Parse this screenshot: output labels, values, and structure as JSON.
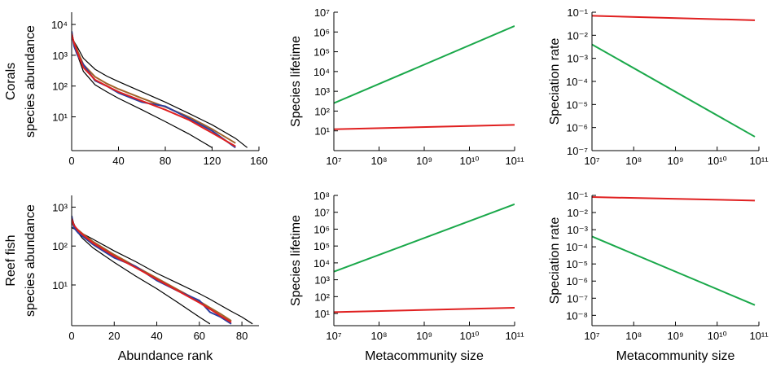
{
  "chart_data": [
    {
      "type": "line",
      "xscale": "linear",
      "yscale": "log",
      "ylabel": [
        "Corals",
        "species abundance"
      ],
      "x": [
        0,
        2,
        5,
        10,
        20,
        30,
        40,
        60,
        80,
        100,
        120,
        140,
        150
      ],
      "xlim": [
        0,
        160
      ],
      "xticks": [
        0,
        40,
        80,
        120,
        160
      ],
      "ylim": [
        0.8,
        25000
      ],
      "yticks": [
        {
          "value": 10,
          "label": "10¹"
        },
        {
          "value": 100,
          "label": "10²"
        },
        {
          "value": 1000,
          "label": "10³"
        },
        {
          "value": 10000,
          "label": "10⁴"
        }
      ],
      "series": [
        {
          "color": "#000000",
          "values": [
            3500,
            2800,
            1800,
            800,
            350,
            210,
            140,
            65,
            30,
            13,
            5.5,
            2,
            1
          ]
        },
        {
          "color": "#000000",
          "values": [
            6000,
            2500,
            1000,
            300,
            110,
            65,
            40,
            17,
            7,
            2.8,
            1,
            null,
            null
          ]
        },
        {
          "color": "#a0642a",
          "values": [
            4500,
            2600,
            1400,
            500,
            200,
            120,
            80,
            40,
            21,
            10,
            4,
            1.4,
            null
          ]
        },
        {
          "color": "#2b3fa0",
          "values": [
            6000,
            2000,
            1000,
            500,
            150,
            100,
            60,
            30,
            22,
            9,
            3.5,
            1,
            null
          ]
        },
        {
          "color": "#e02020",
          "values": [
            5000,
            2500,
            1200,
            400,
            160,
            100,
            65,
            33,
            17,
            8,
            3,
            1.1,
            null
          ]
        }
      ]
    },
    {
      "type": "line",
      "xscale": "log",
      "yscale": "log",
      "ylabel": [
        "Species lifetime"
      ],
      "x": [
        10000000.0,
        100000000000.0
      ],
      "xlim": [
        10000000.0,
        100000000000.0
      ],
      "xticks": [
        {
          "value": 10000000.0,
          "label": "10⁷"
        },
        {
          "value": 100000000.0,
          "label": "10⁸"
        },
        {
          "value": 1000000000.0,
          "label": "10⁹"
        },
        {
          "value": 10000000000.0,
          "label": "10¹⁰"
        },
        {
          "value": 100000000000.0,
          "label": "10¹¹"
        }
      ],
      "ylim": [
        1,
        10000000.0
      ],
      "yticks": [
        {
          "value": 10,
          "label": "10¹"
        },
        {
          "value": 100,
          "label": "10²"
        },
        {
          "value": 1000,
          "label": "10³"
        },
        {
          "value": 10000.0,
          "label": "10⁴"
        },
        {
          "value": 100000.0,
          "label": "10⁵"
        },
        {
          "value": 1000000.0,
          "label": "10⁶"
        },
        {
          "value": 10000000.0,
          "label": "10⁷"
        }
      ],
      "series": [
        {
          "color": "#1aa84a",
          "values": [
            250,
            2000000
          ]
        },
        {
          "color": "#e02020",
          "values": [
            12,
            20
          ]
        }
      ]
    },
    {
      "type": "line",
      "xscale": "log",
      "yscale": "log",
      "ylabel": [
        "Speciation rate"
      ],
      "x": [
        10000000.0,
        80000000000.0
      ],
      "xlim": [
        10000000.0,
        100000000000.0
      ],
      "xticks": [
        {
          "value": 10000000.0,
          "label": "10⁷"
        },
        {
          "value": 100000000.0,
          "label": "10⁸"
        },
        {
          "value": 1000000000.0,
          "label": "10⁹"
        },
        {
          "value": 10000000000.0,
          "label": "10¹⁰"
        },
        {
          "value": 100000000000.0,
          "label": "10¹¹"
        }
      ],
      "ylim": [
        1e-07,
        0.1
      ],
      "yticks": [
        {
          "value": 1e-07,
          "label": "10⁻⁷"
        },
        {
          "value": 1e-06,
          "label": "10⁻⁶"
        },
        {
          "value": 1e-05,
          "label": "10⁻⁵"
        },
        {
          "value": 0.0001,
          "label": "10⁻⁴"
        },
        {
          "value": 0.001,
          "label": "10⁻³"
        },
        {
          "value": 0.01,
          "label": "10⁻²"
        },
        {
          "value": 0.1,
          "label": "10⁻¹"
        }
      ],
      "series": [
        {
          "color": "#1aa84a",
          "values": [
            0.004,
            4e-07
          ]
        },
        {
          "color": "#e02020",
          "values": [
            0.07,
            0.045
          ]
        }
      ]
    },
    {
      "type": "line",
      "xscale": "linear",
      "yscale": "log",
      "ylabel": [
        "Reef fish",
        "species abundance"
      ],
      "xlabel": "Abundance rank",
      "x": [
        0,
        1,
        3,
        5,
        10,
        20,
        30,
        40,
        50,
        60,
        65,
        70,
        75,
        80,
        85
      ],
      "xlim": [
        0,
        88
      ],
      "xticks": [
        0,
        20,
        40,
        60,
        80
      ],
      "ylim": [
        0.9,
        2000
      ],
      "yticks": [
        {
          "value": 10,
          "label": "10¹"
        },
        {
          "value": 100,
          "label": "10²"
        },
        {
          "value": 1000,
          "label": "10³"
        }
      ],
      "series": [
        {
          "color": "#000000",
          "values": [
            300,
            280,
            240,
            210,
            150,
            75,
            40,
            20,
            11,
            6,
            4.3,
            3,
            2.1,
            1.5,
            1
          ]
        },
        {
          "color": "#000000",
          "values": [
            600,
            380,
            220,
            160,
            90,
            38,
            17,
            8,
            3.5,
            1.5,
            1,
            null,
            null,
            null,
            null
          ]
        },
        {
          "color": "#a0642a",
          "values": [
            400,
            330,
            260,
            210,
            130,
            60,
            30,
            15,
            7.5,
            3.8,
            2.6,
            1.8,
            1.2,
            null,
            null
          ]
        },
        {
          "color": "#2b3fa0",
          "values": [
            600,
            300,
            220,
            180,
            110,
            50,
            30,
            13,
            7,
            4,
            2,
            1.5,
            1,
            null,
            null
          ]
        },
        {
          "color": "#e02020",
          "values": [
            500,
            350,
            250,
            200,
            120,
            55,
            28,
            14,
            7,
            3.5,
            2.4,
            1.6,
            1.1,
            null,
            null
          ]
        }
      ]
    },
    {
      "type": "line",
      "xscale": "log",
      "yscale": "log",
      "ylabel": [
        "Species lifetime"
      ],
      "xlabel": "Metacommunity size",
      "x": [
        10000000.0,
        100000000000.0
      ],
      "xlim": [
        10000000.0,
        100000000000.0
      ],
      "xticks": [
        {
          "value": 10000000.0,
          "label": "10⁷"
        },
        {
          "value": 100000000.0,
          "label": "10⁸"
        },
        {
          "value": 1000000000.0,
          "label": "10⁹"
        },
        {
          "value": 10000000000.0,
          "label": "10¹⁰"
        },
        {
          "value": 100000000000.0,
          "label": "10¹¹"
        }
      ],
      "ylim": [
        1.9,
        100000000.0
      ],
      "yticks": [
        {
          "value": 10,
          "label": "10¹"
        },
        {
          "value": 100,
          "label": "10²"
        },
        {
          "value": 1000,
          "label": "10³"
        },
        {
          "value": 10000.0,
          "label": "10⁴"
        },
        {
          "value": 100000.0,
          "label": "10⁵"
        },
        {
          "value": 1000000.0,
          "label": "10⁶"
        },
        {
          "value": 10000000.0,
          "label": "10⁷"
        },
        {
          "value": 100000000.0,
          "label": "10⁸"
        }
      ],
      "series": [
        {
          "color": "#1aa84a",
          "values": [
            3000,
            30000000
          ]
        },
        {
          "color": "#e02020",
          "values": [
            12,
            22
          ]
        }
      ]
    },
    {
      "type": "line",
      "xscale": "log",
      "yscale": "log",
      "ylabel": [
        "Speciation rate"
      ],
      "xlabel": "Metacommunity size",
      "x": [
        10000000.0,
        80000000000.0
      ],
      "xlim": [
        10000000.0,
        100000000000.0
      ],
      "xticks": [
        {
          "value": 10000000.0,
          "label": "10⁷"
        },
        {
          "value": 100000000.0,
          "label": "10⁸"
        },
        {
          "value": 1000000000.0,
          "label": "10⁹"
        },
        {
          "value": 10000000000.0,
          "label": "10¹⁰"
        },
        {
          "value": 100000000000.0,
          "label": "10¹¹"
        }
      ],
      "ylim": [
        2.5e-09,
        0.1
      ],
      "yticks": [
        {
          "value": 1e-08,
          "label": "10⁻⁸"
        },
        {
          "value": 1e-07,
          "label": "10⁻⁷"
        },
        {
          "value": 1e-06,
          "label": "10⁻⁶"
        },
        {
          "value": 1e-05,
          "label": "10⁻⁵"
        },
        {
          "value": 0.0001,
          "label": "10⁻⁴"
        },
        {
          "value": 0.001,
          "label": "10⁻³"
        },
        {
          "value": 0.01,
          "label": "10⁻²"
        },
        {
          "value": 0.1,
          "label": "10⁻¹"
        }
      ],
      "series": [
        {
          "color": "#1aa84a",
          "values": [
            0.0004,
            4e-08
          ]
        },
        {
          "color": "#e02020",
          "values": [
            0.08,
            0.05
          ]
        }
      ]
    }
  ]
}
